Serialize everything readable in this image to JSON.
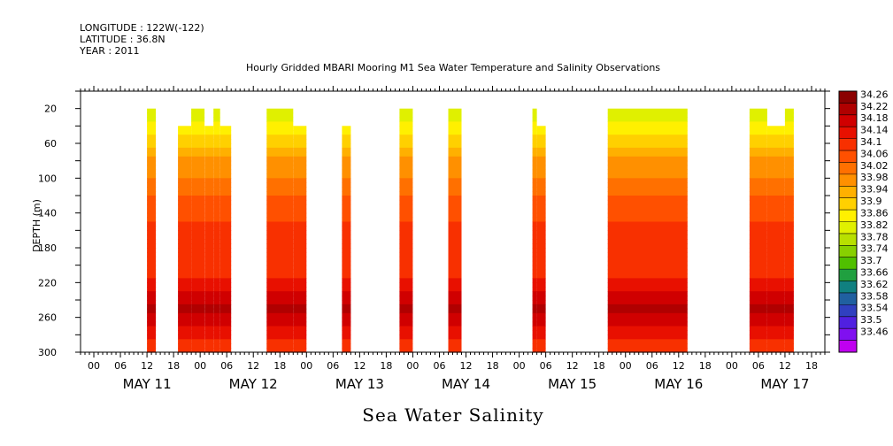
{
  "header": {
    "longitude": "LONGITUDE : 122W(-122)",
    "latitude": "LATITUDE : 36.8N",
    "year": "YEAR : 2011"
  },
  "chart_data": {
    "type": "heatmap",
    "title": "Hourly Gridded MBARI Mooring M1 Sea Water Temperature and Salinity Observations",
    "bottom_title": "Sea Water Salinity",
    "ylabel": "DEPTH (m)",
    "ylim": [
      300,
      0
    ],
    "y_ticks": [
      20,
      60,
      100,
      140,
      180,
      220,
      260,
      300
    ],
    "x_hour_labels": [
      "00",
      "06",
      "12",
      "18",
      "00",
      "06",
      "12",
      "18",
      "00",
      "06",
      "12",
      "18",
      "00",
      "06",
      "12",
      "18",
      "00",
      "06",
      "12",
      "18",
      "00",
      "06",
      "12",
      "18",
      "00",
      "06",
      "12",
      "18"
    ],
    "x_day_labels": [
      "MAY 11",
      "MAY 12",
      "MAY 13",
      "MAY 14",
      "MAY 15",
      "MAY 16",
      "MAY 17"
    ],
    "x_range_hours_from_may11_00": [
      -3,
      165
    ],
    "colorbar": {
      "levels": [
        "34.26",
        "34.22",
        "34.18",
        "34.14",
        "34.1",
        "34.06",
        "34.02",
        "33.98",
        "33.94",
        "33.9",
        "33.86",
        "33.82",
        "33.78",
        "33.74",
        "33.7",
        "33.66",
        "33.62",
        "33.58",
        "33.54",
        "33.5",
        "33.46"
      ],
      "colors": [
        "#8b0000",
        "#b00000",
        "#d00000",
        "#e81000",
        "#f83000",
        "#ff5000",
        "#ff7000",
        "#ff9000",
        "#ffb000",
        "#ffd000",
        "#fff000",
        "#e0f000",
        "#b8e000",
        "#88d000",
        "#50c000",
        "#20a040",
        "#108080",
        "#2060a0",
        "#3040c0",
        "#5020e0",
        "#8010f0",
        "#c000f0"
      ]
    },
    "segments": [
      {
        "start": 12,
        "end": 14,
        "top_depth": 20
      },
      {
        "start": 19,
        "end": 22,
        "top_depth": 40
      },
      {
        "start": 22,
        "end": 25,
        "top_depth": 20
      },
      {
        "start": 25,
        "end": 27,
        "top_depth": 40
      },
      {
        "start": 27,
        "end": 28.5,
        "top_depth": 20
      },
      {
        "start": 28.5,
        "end": 31,
        "top_depth": 40
      },
      {
        "start": 39,
        "end": 45,
        "top_depth": 20
      },
      {
        "start": 45,
        "end": 48,
        "top_depth": 40
      },
      {
        "start": 56,
        "end": 58,
        "top_depth": 40
      },
      {
        "start": 69,
        "end": 72,
        "top_depth": 20
      },
      {
        "start": 80,
        "end": 83,
        "top_depth": 20
      },
      {
        "start": 99,
        "end": 100,
        "top_depth": 20
      },
      {
        "start": 100,
        "end": 102,
        "top_depth": 40
      },
      {
        "start": 116,
        "end": 134,
        "top_depth": 20
      },
      {
        "start": 148,
        "end": 152,
        "top_depth": 20
      },
      {
        "start": 152,
        "end": 156,
        "top_depth": 40
      },
      {
        "start": 156,
        "end": 158,
        "top_depth": 20
      }
    ],
    "depth_profile": [
      {
        "depth": 20,
        "value": 33.82
      },
      {
        "depth": 40,
        "value": 33.88
      },
      {
        "depth": 60,
        "value": 33.93
      },
      {
        "depth": 80,
        "value": 33.99
      },
      {
        "depth": 100,
        "value": 34.02
      },
      {
        "depth": 120,
        "value": 34.06
      },
      {
        "depth": 140,
        "value": 34.09
      },
      {
        "depth": 160,
        "value": 34.11
      },
      {
        "depth": 180,
        "value": 34.11
      },
      {
        "depth": 200,
        "value": 34.12
      },
      {
        "depth": 220,
        "value": 34.15
      },
      {
        "depth": 240,
        "value": 34.2
      },
      {
        "depth": 250,
        "value": 34.23
      },
      {
        "depth": 260,
        "value": 34.21
      },
      {
        "depth": 280,
        "value": 34.15
      },
      {
        "depth": 300,
        "value": 34.12
      }
    ]
  }
}
